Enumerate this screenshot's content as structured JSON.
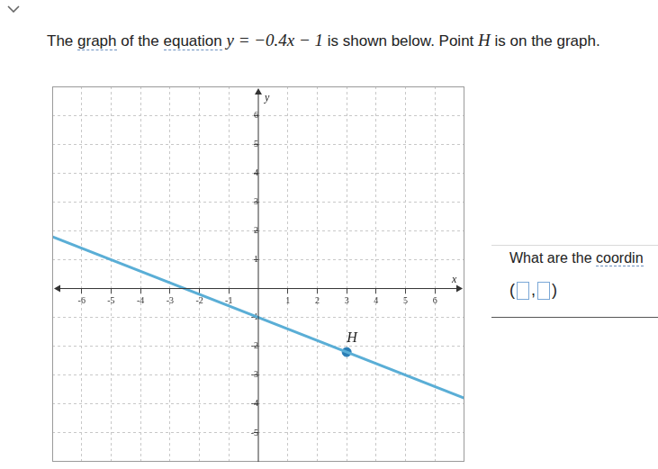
{
  "header": {
    "parts": [
      {
        "text": "The "
      },
      {
        "text": "graph",
        "link": true
      },
      {
        "text": " of the "
      },
      {
        "text": "equation",
        "link": true
      },
      {
        "text": " "
      },
      {
        "text": "y = −0.4x − 1",
        "math": true
      },
      {
        "text": " is shown below. Point "
      },
      {
        "text": "H",
        "math": true
      },
      {
        "text": " is on the graph."
      }
    ]
  },
  "prompt": {
    "parts": [
      {
        "text": "What are the "
      },
      {
        "text": "coordin",
        "link": true
      }
    ]
  },
  "answer_template": [
    "(",
    ",",
    ")"
  ],
  "chart_data": {
    "type": "line",
    "xlabel": "x",
    "ylabel": "y",
    "x": [
      -7,
      7
    ],
    "series": [
      {
        "values": [
          1.8,
          -3.8
        ],
        "color": "#5aaed6"
      }
    ],
    "points": [
      {
        "label": "H",
        "x": 3,
        "y": -2.2,
        "color": "#2a7db5"
      }
    ],
    "xlim": [
      -7,
      7
    ],
    "ylim": [
      -6,
      7
    ],
    "xticks": [
      -6,
      -5,
      -4,
      -3,
      -2,
      -1,
      1,
      2,
      3,
      4,
      5,
      6
    ],
    "yticks": [
      -5,
      -4,
      -3,
      -2,
      -1,
      1,
      2,
      3,
      4,
      5,
      6
    ],
    "grid": true
  }
}
